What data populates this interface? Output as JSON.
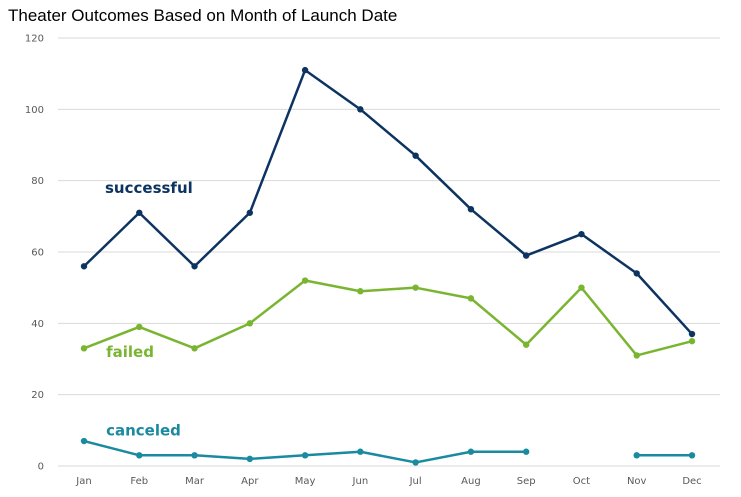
{
  "chart_data": {
    "type": "line",
    "title": "Theater Outcomes Based on Month of Launch Date",
    "categories": [
      "Jan",
      "Feb",
      "Mar",
      "Apr",
      "May",
      "Jun",
      "Jul",
      "Aug",
      "Sep",
      "Oct",
      "Nov",
      "Dec"
    ],
    "yticks": [
      "0",
      "20",
      "40",
      "60",
      "80",
      "100",
      "120"
    ],
    "ylim": [
      0,
      120
    ],
    "grid": true,
    "series": [
      {
        "name": "successful",
        "color": "#0d3461",
        "values": [
          56,
          71,
          56,
          71,
          111,
          100,
          87,
          72,
          59,
          65,
          54,
          37
        ]
      },
      {
        "name": "failed",
        "color": "#7ab532",
        "values": [
          33,
          39,
          33,
          40,
          52,
          49,
          50,
          47,
          34,
          50,
          31,
          35
        ]
      },
      {
        "name": "canceled",
        "color": "#1a8aa0",
        "values": [
          7,
          3,
          3,
          2,
          3,
          4,
          1,
          4,
          4,
          null,
          3,
          3
        ]
      }
    ]
  }
}
